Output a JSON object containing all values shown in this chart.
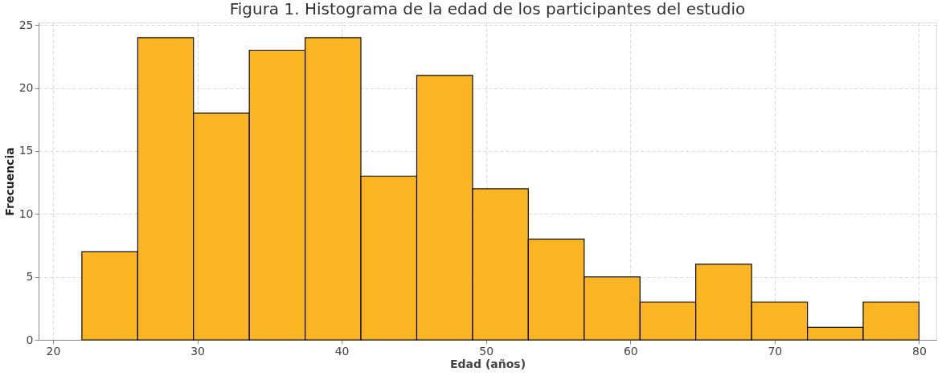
{
  "chart_data": {
    "type": "histogram",
    "title": "Figura 1. Histograma de la edad de los participantes del estudio",
    "xlabel": "Edad (años)",
    "ylabel": "Frecuencia",
    "bins": [
      22,
      25.87,
      29.73,
      33.6,
      37.47,
      41.33,
      45.2,
      49.07,
      52.93,
      56.8,
      60.67,
      64.53,
      68.4,
      72.27,
      76.13,
      80
    ],
    "values": [
      7,
      24,
      18,
      23,
      24,
      13,
      21,
      12,
      8,
      5,
      3,
      6,
      3,
      1,
      3
    ],
    "color": "#fbb117",
    "xlim": [
      19,
      81.2
    ],
    "xticks": [
      20,
      30,
      40,
      50,
      60,
      70,
      80
    ],
    "ylim": [
      0,
      25.2
    ],
    "yticks": [
      0,
      5,
      10,
      15,
      20,
      25
    ],
    "grid": true
  }
}
